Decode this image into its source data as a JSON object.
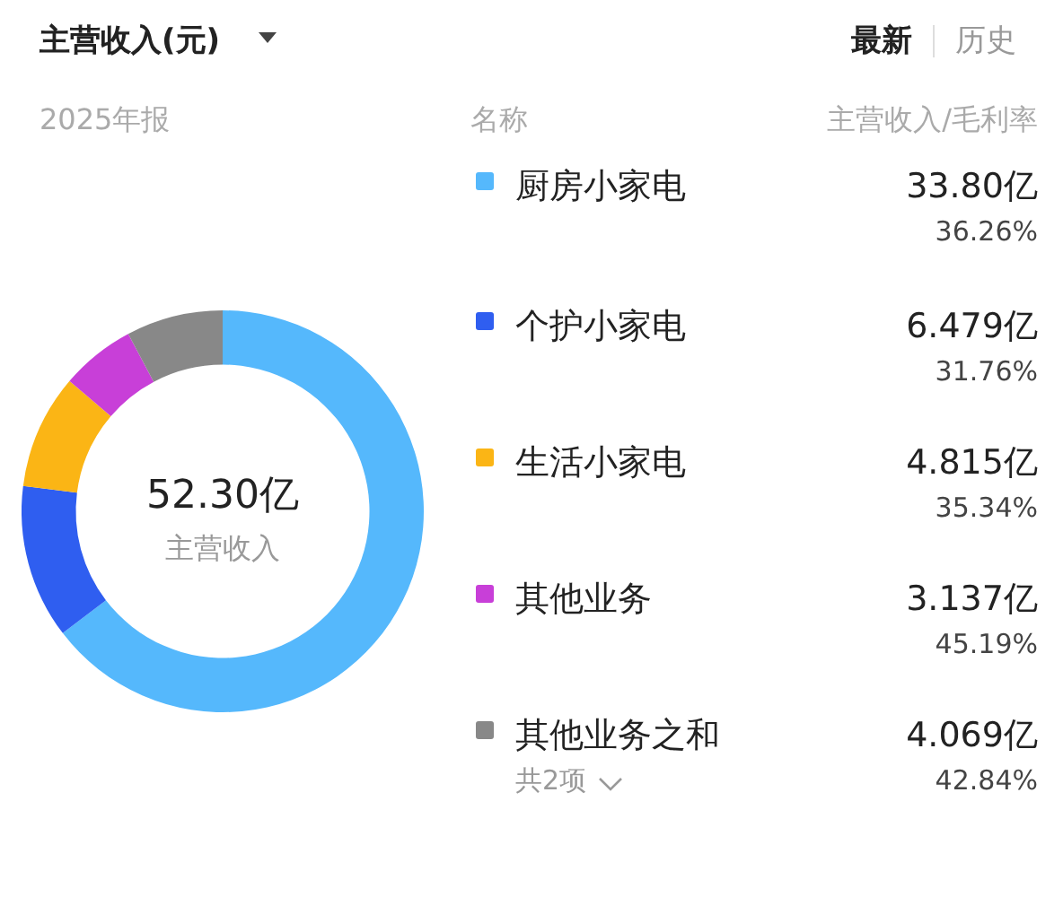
{
  "chart_data": {
    "type": "donut",
    "title": "主营收入(元)",
    "subtitle": "2025年报",
    "legend_title": "名称",
    "legend": "right",
    "categories": [
      "厨房小家电",
      "个护小家电",
      "生活小家电",
      "其他业务",
      "其他业务之和"
    ],
    "values": [
      33.8,
      6.479,
      4.815,
      3.137,
      4.069
    ],
    "value_labels": [
      "33.80亿",
      "6.479亿",
      "4.815亿",
      "3.137亿",
      "4.069亿"
    ],
    "colors": [
      "#55b8fc",
      "#2f5ef0",
      "#fbb515",
      "#c83fd8",
      "#888888"
    ],
    "annotations": [
      "最新",
      "历史",
      "主营收入/毛利率",
      "52.30亿",
      "主营收入",
      "36.26%",
      "31.76%",
      "35.34%",
      "45.19%",
      "42.84%",
      "共2项"
    ]
  }
}
